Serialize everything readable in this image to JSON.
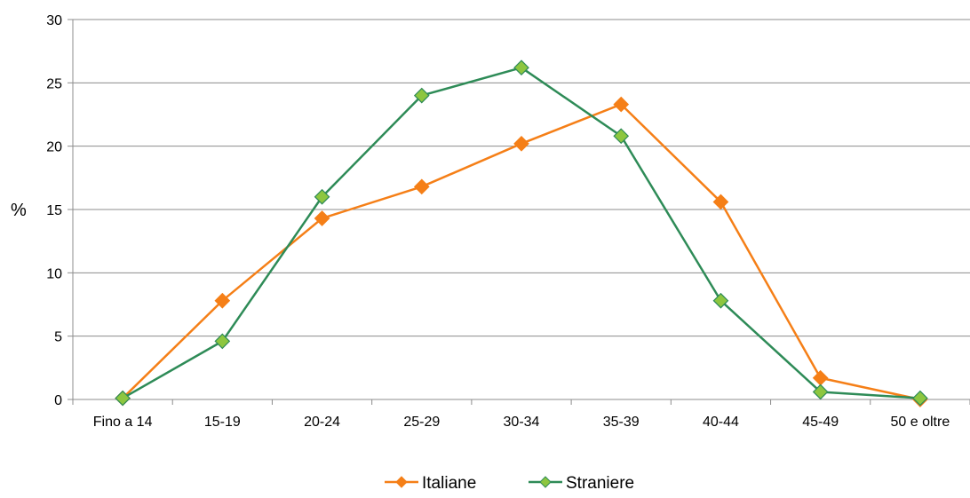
{
  "chart_data": {
    "type": "line",
    "categories": [
      "Fino a 14",
      "15-19",
      "20-24",
      "25-29",
      "30-34",
      "35-39",
      "40-44",
      "45-49",
      "50 e oltre"
    ],
    "series": [
      {
        "name": "Italiane",
        "color": "#F57F17",
        "marker": "diamond",
        "values": [
          0.1,
          7.8,
          14.3,
          16.8,
          20.2,
          23.3,
          15.6,
          1.7,
          0.0
        ]
      },
      {
        "name": "Straniere",
        "color": "#2E8B57",
        "marker": "diamond",
        "marker_fill": "#8DC63F",
        "values": [
          0.1,
          4.6,
          16.0,
          24.0,
          26.2,
          20.8,
          7.8,
          0.6,
          0.1
        ]
      }
    ],
    "ylabel": "%",
    "ylim": [
      0,
      30
    ],
    "yticks": [
      0,
      5,
      10,
      15,
      20,
      25,
      30
    ],
    "grid": "horizontal",
    "legend_position": "bottom"
  }
}
